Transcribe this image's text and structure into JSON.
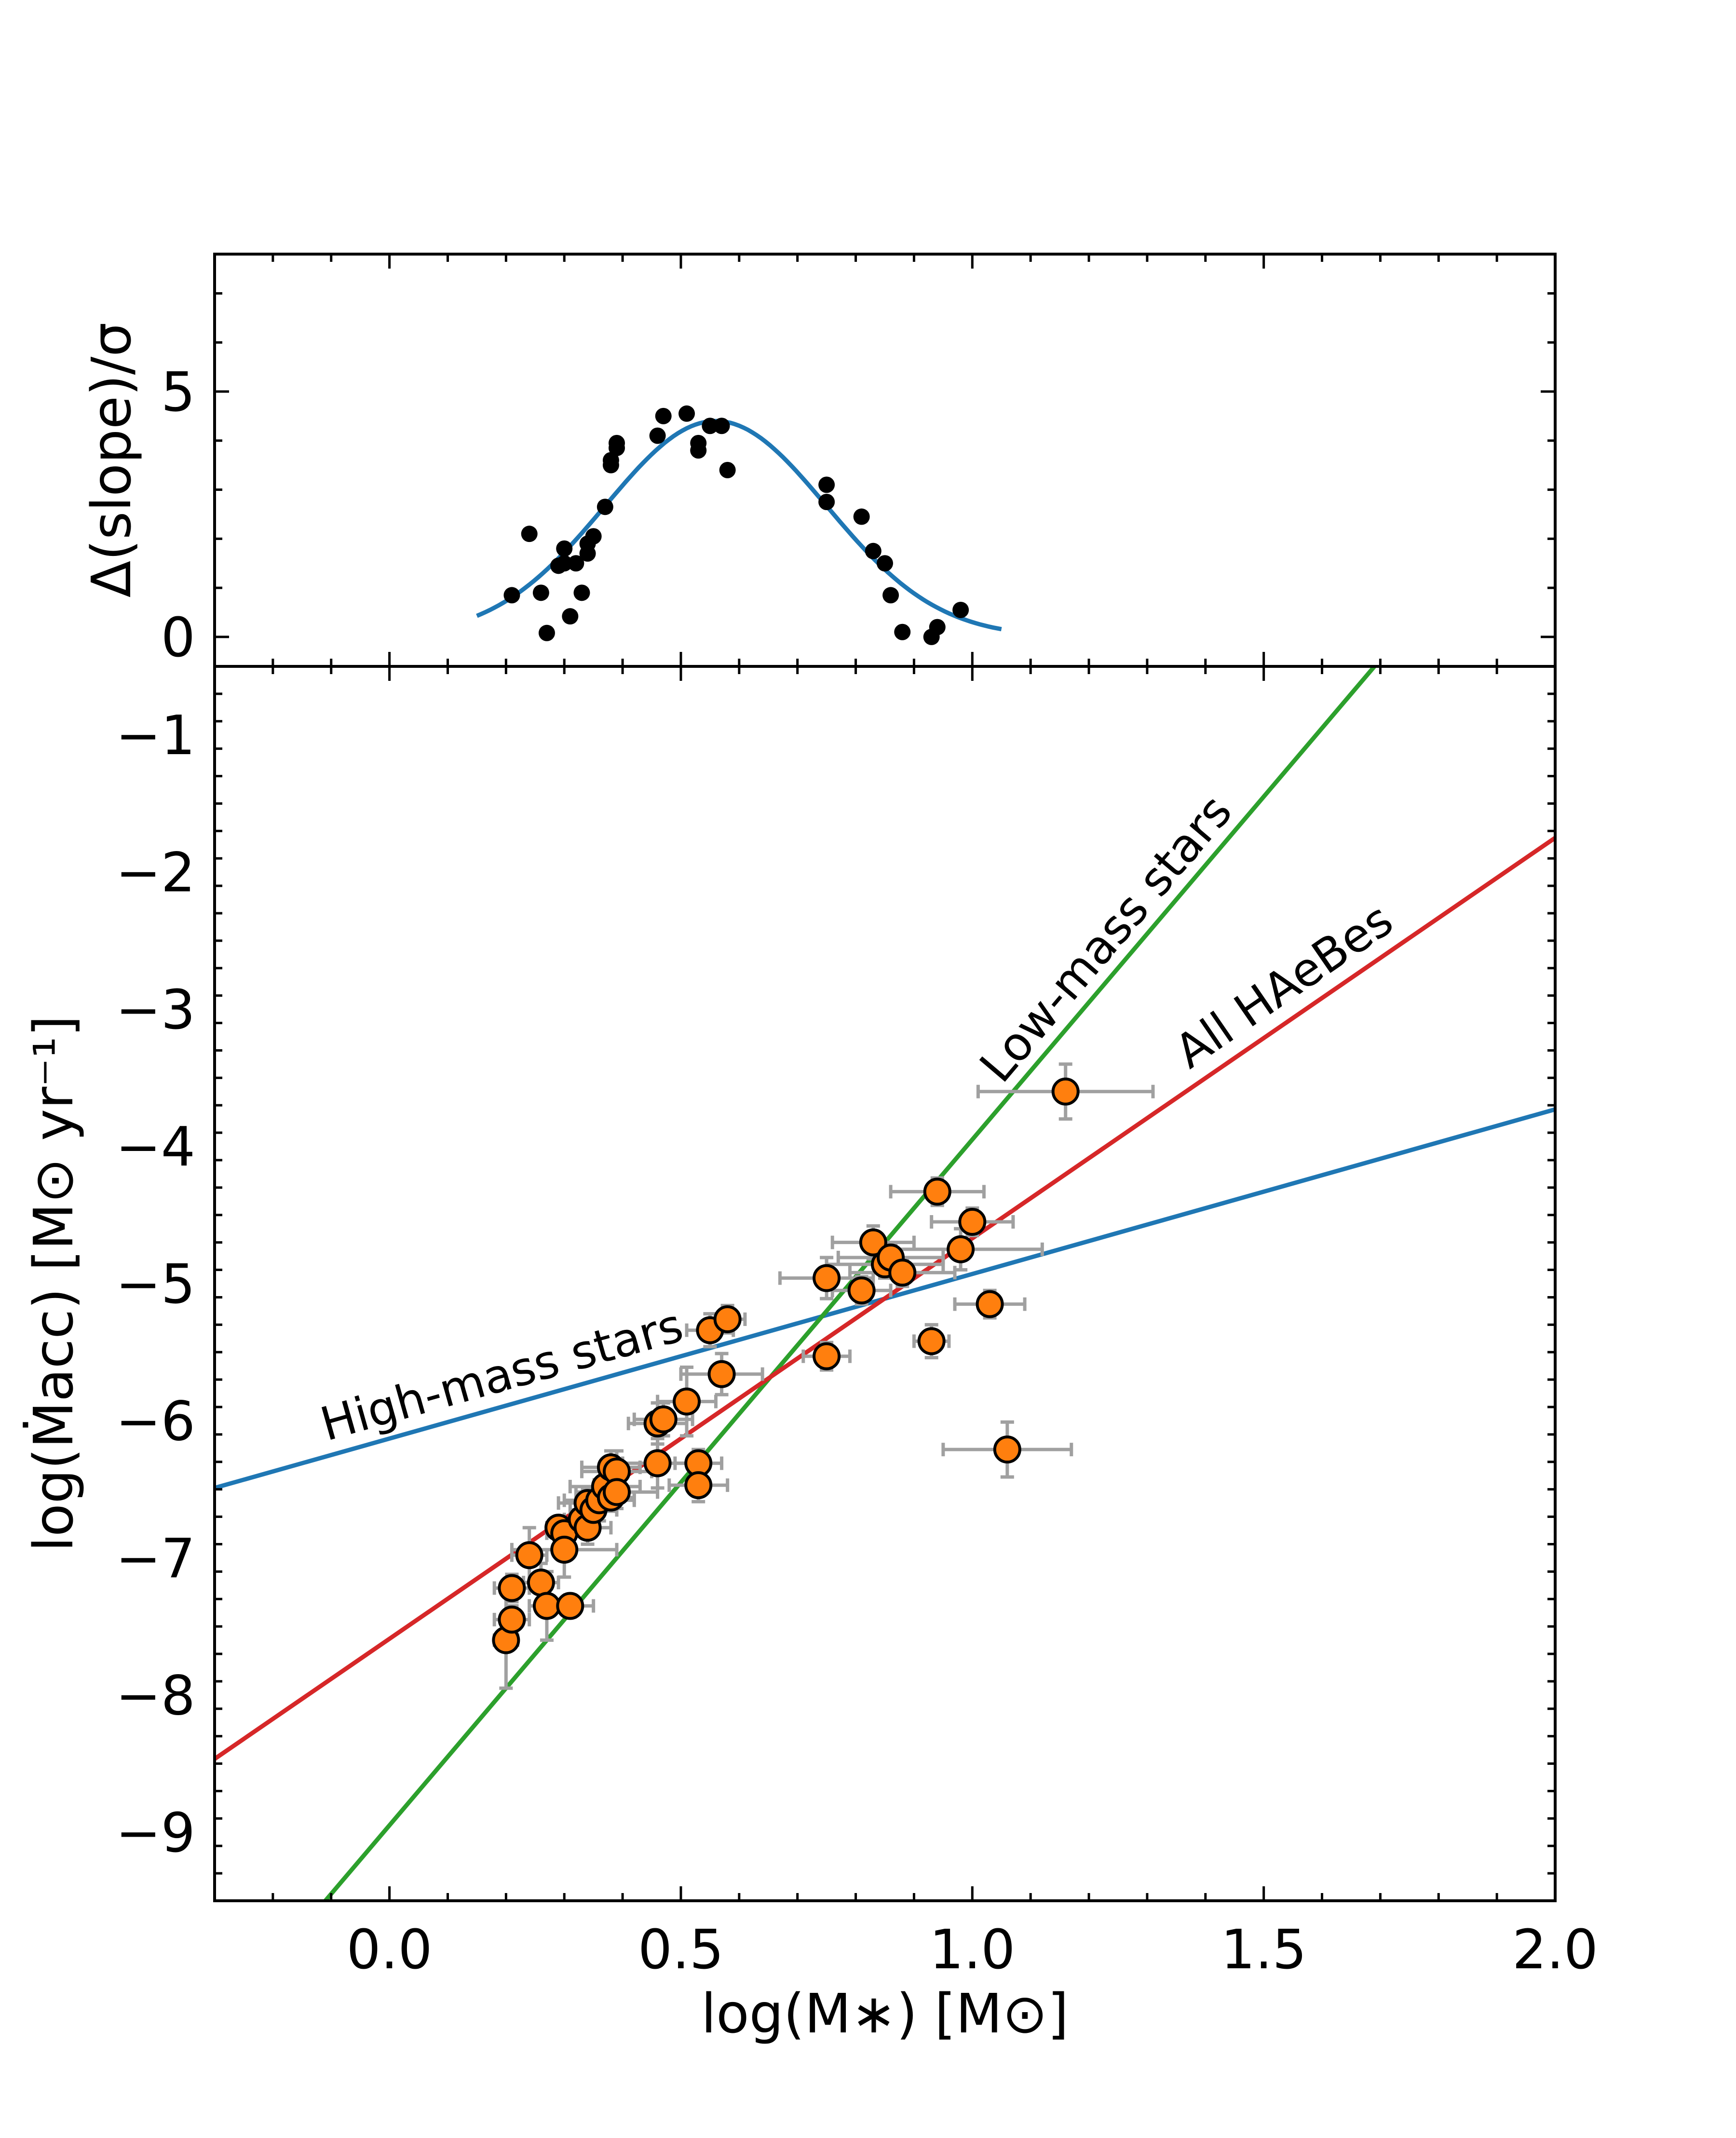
{
  "chart_data": [
    {
      "type": "scatter",
      "panel": "top",
      "ylabel": "Δ(slope)/σ",
      "xlim": [
        -0.3,
        2.0
      ],
      "ylim": [
        -0.6,
        7.8
      ],
      "yticks": [
        0,
        5
      ],
      "ytick_labels": [
        "0",
        "5"
      ],
      "xticks": [
        0.0,
        0.5,
        1.0,
        1.5,
        2.0
      ],
      "series": [
        {
          "name": "points",
          "color": "#000000",
          "x": [
            0.21,
            0.24,
            0.26,
            0.27,
            0.29,
            0.3,
            0.3,
            0.31,
            0.32,
            0.33,
            0.34,
            0.34,
            0.35,
            0.37,
            0.38,
            0.38,
            0.39,
            0.39,
            0.46,
            0.47,
            0.51,
            0.53,
            0.53,
            0.55,
            0.57,
            0.58,
            0.75,
            0.75,
            0.81,
            0.83,
            0.85,
            0.86,
            0.88,
            0.93,
            0.94,
            0.98
          ],
          "y": [
            0.85,
            2.1,
            0.9,
            0.08,
            1.45,
            1.8,
            1.5,
            0.42,
            1.5,
            0.9,
            1.7,
            1.9,
            2.05,
            2.65,
            3.5,
            3.6,
            3.95,
            3.85,
            4.1,
            4.5,
            4.55,
            3.95,
            3.8,
            4.3,
            4.3,
            3.4,
            3.1,
            2.75,
            2.45,
            1.75,
            1.5,
            0.85,
            0.1,
            0.0,
            0.2,
            0.55
          ]
        },
        {
          "name": "gaussian-fit",
          "type": "line",
          "color": "#1f77b4",
          "amplitude": 4.4,
          "mean": 0.56,
          "sigma": 0.19,
          "x_range": [
            0.15,
            1.05
          ]
        }
      ]
    },
    {
      "type": "scatter",
      "panel": "bottom",
      "xlabel": "log(M∗) [M⊙]",
      "ylabel": "log(Ṁacc) [M⊙ yr⁻¹]",
      "xlim": [
        -0.3,
        2.0
      ],
      "ylim": [
        -9.5,
        -0.5
      ],
      "xticks": [
        0.0,
        0.5,
        1.0,
        1.5,
        2.0
      ],
      "xtick_labels": [
        "0.0",
        "0.5",
        "1.0",
        "1.5",
        "2.0"
      ],
      "yticks": [
        -9,
        -8,
        -7,
        -6,
        -5,
        -4,
        -3,
        -2,
        -1
      ],
      "ytick_labels": [
        "−9",
        "−8",
        "−7",
        "−6",
        "−5",
        "−4",
        "−3",
        "−2",
        "−1"
      ],
      "lines": [
        {
          "name": "High-mass stars",
          "color": "#1f77b4",
          "slope": 1.2,
          "intercept": -6.13
        },
        {
          "name": "Low-mass stars",
          "color": "#2ca02c",
          "slope": 5.0,
          "intercept": -8.95
        },
        {
          "name": "All HAeBes",
          "color": "#d62728",
          "slope": 2.92,
          "intercept": -7.59
        }
      ],
      "line_labels": [
        "High-mass stars",
        "Low-mass stars",
        "All HAeBes"
      ],
      "points": {
        "fill": "#ff7f0e",
        "edge": "#000000",
        "errorbar_color": "#a0a0a0",
        "x": [
          0.2,
          0.21,
          0.21,
          0.24,
          0.26,
          0.27,
          0.29,
          0.3,
          0.3,
          0.31,
          0.33,
          0.34,
          0.34,
          0.35,
          0.36,
          0.37,
          0.38,
          0.38,
          0.39,
          0.39,
          0.46,
          0.46,
          0.47,
          0.51,
          0.53,
          0.53,
          0.55,
          0.57,
          0.58,
          0.75,
          0.75,
          0.81,
          0.83,
          0.85,
          0.86,
          0.88,
          0.93,
          0.94,
          0.98,
          1.0,
          1.03,
          1.06,
          1.16
        ],
        "y": [
          -7.6,
          -7.45,
          -7.22,
          -6.98,
          -7.18,
          -7.35,
          -6.78,
          -6.82,
          -6.94,
          -7.35,
          -6.72,
          -6.6,
          -6.78,
          -6.65,
          -6.58,
          -6.48,
          -6.34,
          -6.56,
          -6.37,
          -6.52,
          -6.02,
          -6.31,
          -5.99,
          -5.86,
          -6.31,
          -6.47,
          -5.34,
          -5.66,
          -5.26,
          -4.96,
          -5.53,
          -5.05,
          -4.7,
          -4.86,
          -4.81,
          -4.92,
          -5.42,
          -4.33,
          -4.75,
          -4.55,
          -5.15,
          -6.21,
          -3.6
        ],
        "xerr": [
          0.02,
          0.03,
          0.03,
          0.03,
          0.03,
          0.03,
          0.02,
          0.03,
          0.09,
          0.04,
          0.03,
          0.05,
          0.04,
          0.04,
          0.06,
          0.06,
          0.05,
          0.04,
          0.06,
          0.07,
          0.05,
          0.06,
          0.05,
          0.05,
          0.04,
          0.05,
          0.04,
          0.07,
          0.03,
          0.08,
          0.04,
          0.05,
          0.07,
          0.1,
          0.09,
          0.09,
          0.03,
          0.08,
          0.14,
          0.07,
          0.06,
          0.11,
          0.15
        ],
        "yerr": [
          0.35,
          0.1,
          0.1,
          0.2,
          0.14,
          0.25,
          0.05,
          0.1,
          0.2,
          0.08,
          0.1,
          0.1,
          0.12,
          0.1,
          0.15,
          0.1,
          0.12,
          0.1,
          0.15,
          0.12,
          0.15,
          0.18,
          0.12,
          0.25,
          0.1,
          0.12,
          0.12,
          0.15,
          0.1,
          0.15,
          0.1,
          0.1,
          0.12,
          0.1,
          0.1,
          0.1,
          0.12,
          0.1,
          0.15,
          0.1,
          0.1,
          0.2,
          0.2
        ]
      }
    }
  ]
}
